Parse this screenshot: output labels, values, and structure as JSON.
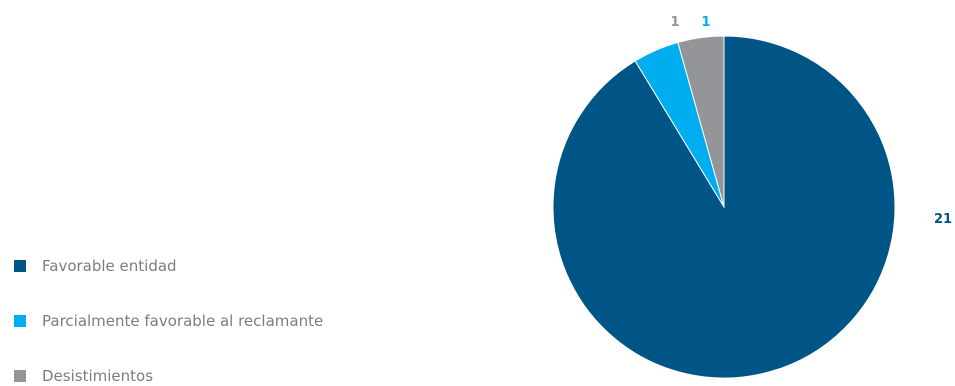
{
  "chart_data": {
    "type": "pie",
    "title": "",
    "series": [
      {
        "values": [
          21,
          1,
          1
        ]
      }
    ],
    "categories": [
      "Favorable entidad",
      "Parcialmente favorable al reclamante",
      "Desistimientos"
    ],
    "slices": [
      {
        "label": "Favorable entidad",
        "value": 21,
        "color": "#005587"
      },
      {
        "label": "Parcialmente favorable al reclamante",
        "value": 1,
        "color": "#00aeef"
      },
      {
        "label": "Desistimientos",
        "value": 1,
        "color": "#939598"
      }
    ],
    "data_labels": [
      "21",
      "1",
      "1"
    ],
    "legend_position": "left",
    "start_angle": "12 o'clock",
    "direction": "clockwise"
  }
}
